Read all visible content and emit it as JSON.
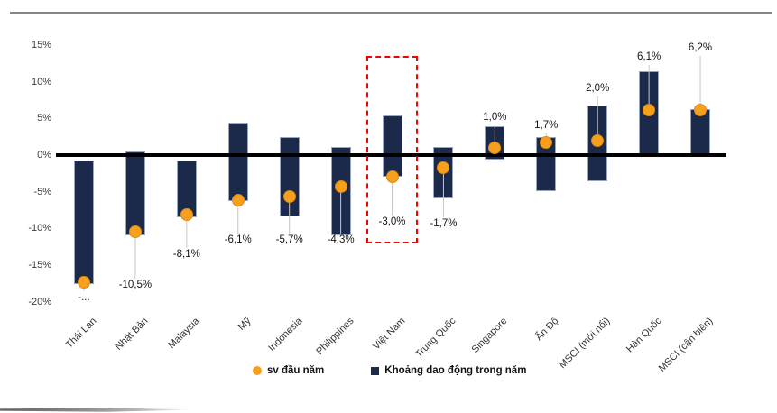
{
  "chart_data": {
    "type": "bar",
    "subtype": "floating-range-bars-with-scatter-points",
    "title": "",
    "xlabel": "",
    "ylabel": "",
    "categories": [
      "Thái Lan",
      "Nhật Bản",
      "Malaysia",
      "Mỹ",
      "Indonesia",
      "Philippines",
      "Việt Nam",
      "Trung Quốc",
      "Singapore",
      "Ấn Độ",
      "MSCI (mới nổi)",
      "Hàn Quốc",
      "MSCI (cận biên)"
    ],
    "series": [
      {
        "name": "Khoảng dao động trong năm",
        "type": "range-bar",
        "high": [
          -0.7,
          0.5,
          -0.7,
          4.4,
          2.5,
          1.1,
          5.4,
          1.1,
          3.9,
          2.4,
          6.8,
          11.4,
          6.3
        ],
        "low": [
          -17.6,
          -10.9,
          -8.5,
          -6.3,
          -8.4,
          -10.9,
          -3.0,
          -5.9,
          -0.6,
          -4.9,
          -3.6,
          0.0,
          0.0
        ]
      },
      {
        "name": "sv đầu năm",
        "type": "scatter",
        "values": [
          -17.3,
          -10.5,
          -8.1,
          -6.1,
          -5.7,
          -4.3,
          -3.0,
          -1.7,
          1.0,
          1.7,
          2.0,
          6.1,
          6.2
        ]
      }
    ],
    "point_labels": [
      "-...",
      "-10,5%",
      "-8,1%",
      "-6,1%",
      "-5,7%",
      "-4,3%",
      "-3,0%",
      "-1,7%",
      "1,0%",
      "1,7%",
      "2,0%",
      "6,1%",
      "6,2%"
    ],
    "yticks": [
      "15%",
      "10%",
      "5%",
      "0%",
      "-5%",
      "-10%",
      "-15%",
      "-20%"
    ],
    "ytick_values": [
      15,
      10,
      5,
      0,
      -5,
      -10,
      -15,
      -20
    ],
    "ylim": [
      -20,
      16
    ],
    "grid": false,
    "legend_position": "bottom-center",
    "highlight": {
      "category": "Việt Nam",
      "style": "red-dashed-box"
    },
    "colors": {
      "bar": "#1B2A4A",
      "point": "#F7A01E",
      "highlight_box": "#F80000",
      "zero_axis": "#000000",
      "leader_line": "#C6C6C6",
      "top_rule": "#868686"
    }
  }
}
